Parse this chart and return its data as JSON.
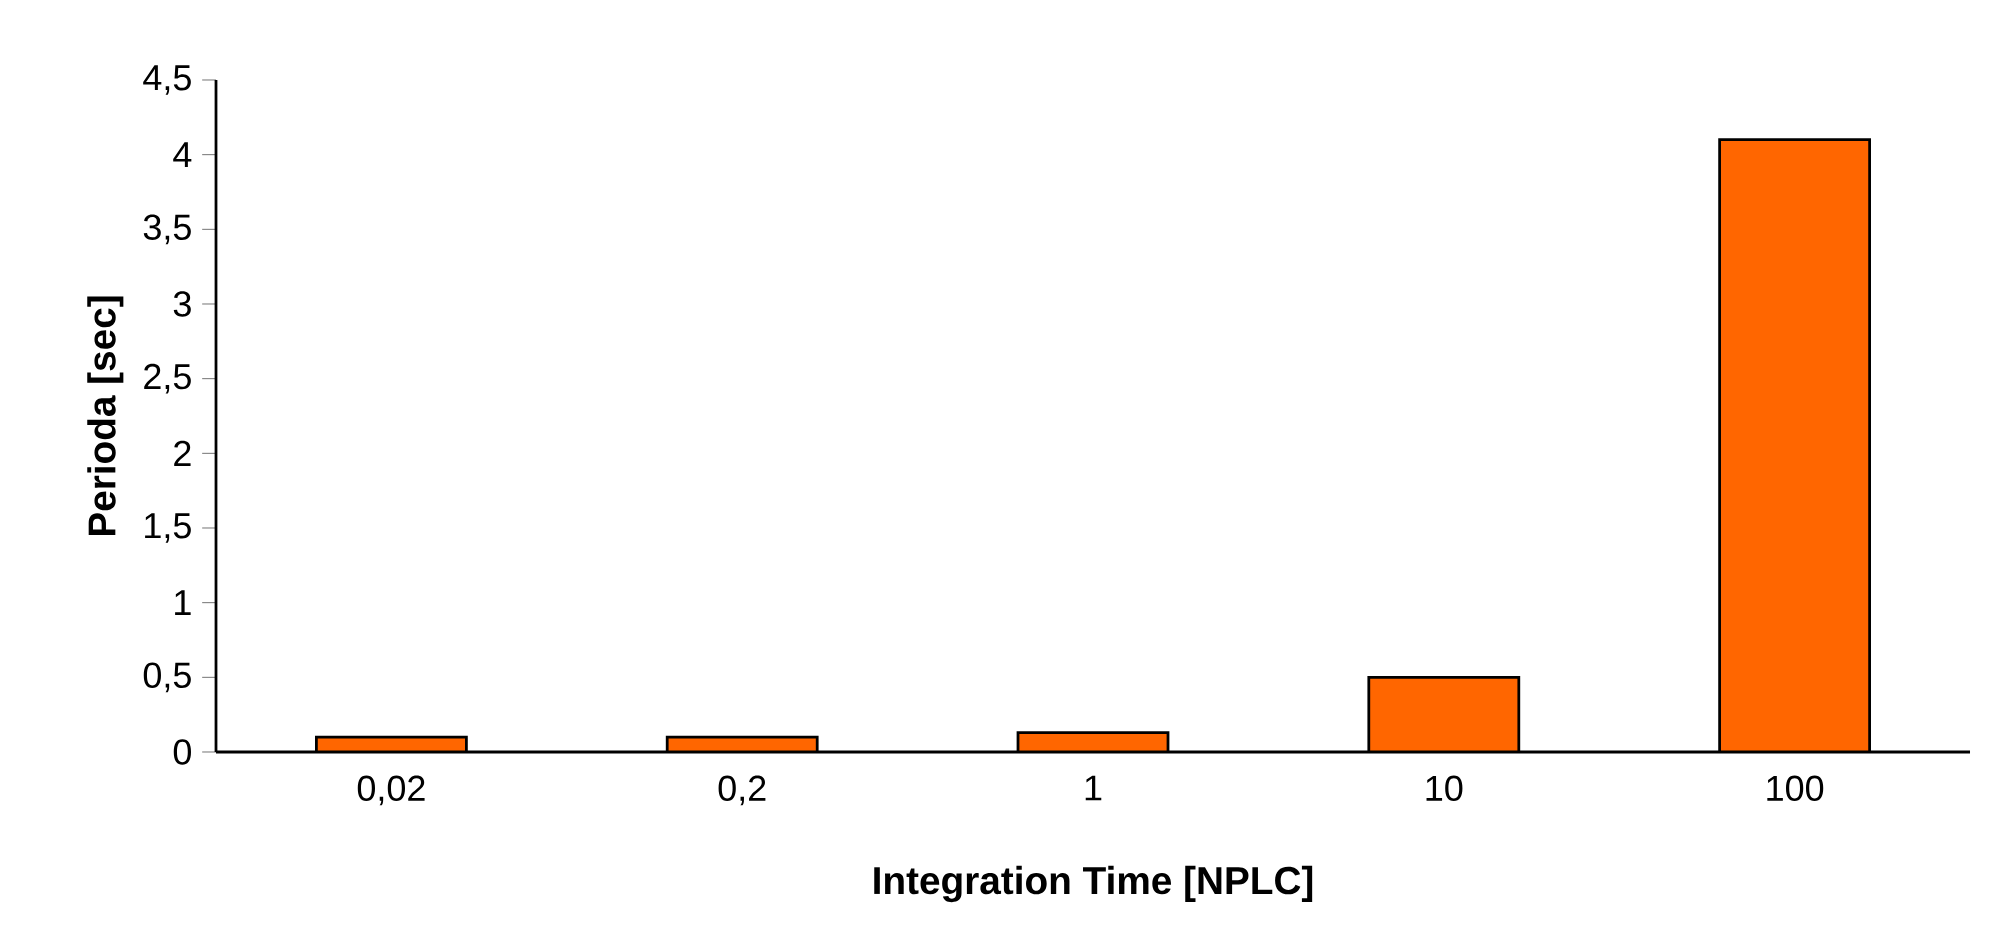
{
  "chart_data": {
    "type": "bar",
    "xlabel": "Integration Time [NPLC]",
    "ylabel": "Perioda [sec]",
    "categories": [
      "0,02",
      "0,2",
      "1",
      "10",
      "100"
    ],
    "values": [
      0.1,
      0.1,
      0.13,
      0.5,
      4.1
    ],
    "color": "#ff6600",
    "ylim": [
      0,
      4.5
    ],
    "yticks": [
      0,
      {
        "value": 0.5,
        "label": "0,5"
      },
      1,
      {
        "value": 1.5,
        "label": "1,5"
      },
      2,
      {
        "value": 2.5,
        "label": "2,5"
      },
      3,
      {
        "value": 3.5,
        "label": "3,5"
      },
      4,
      {
        "value": 4.5,
        "label": "4,5"
      }
    ],
    "grid": false
  }
}
